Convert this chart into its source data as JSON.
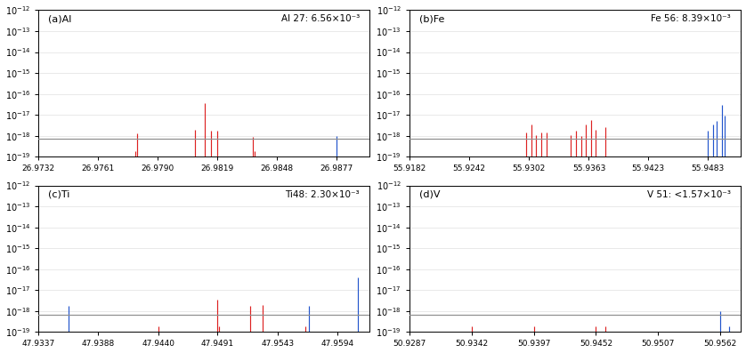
{
  "panels": [
    {
      "label": "(a)Al",
      "annotation": "Al 27: 6.56×10⁻³",
      "xmin": 26.9732,
      "xmax": 26.9893,
      "xticks": [
        26.9732,
        26.9761,
        26.979,
        26.9819,
        26.9848,
        26.9877
      ],
      "xtick_labels": [
        "26.9732",
        "26.9761",
        "26.9790",
        "26.9819",
        "26.9848",
        "26.9877"
      ],
      "red_lines": [
        [
          26.978,
          1.3e-18
        ],
        [
          26.9779,
          1.9e-19
        ],
        [
          26.9808,
          1.9e-18
        ],
        [
          26.9813,
          3.5e-17
        ],
        [
          26.9816,
          1.8e-18
        ],
        [
          26.9819,
          1.8e-18
        ],
        [
          26.9836,
          9e-19
        ],
        [
          26.9837,
          1.9e-19
        ]
      ],
      "blue_lines": [
        [
          26.9877,
          9.5e-19
        ]
      ],
      "hline": 7e-19
    },
    {
      "label": "(b)Fe",
      "annotation": "Fe 56: 8.39×10⁻³",
      "xmin": 55.9182,
      "xmax": 55.9516,
      "xticks": [
        55.9182,
        55.9242,
        55.9302,
        55.9363,
        55.9423,
        55.9483
      ],
      "xtick_labels": [
        "55.9182",
        "55.9242",
        "55.9302",
        "55.9363",
        "55.9423",
        "55.9483"
      ],
      "red_lines": [
        [
          55.9244,
          1e-19
        ],
        [
          55.93,
          1.5e-18
        ],
        [
          55.9305,
          3.5e-18
        ],
        [
          55.931,
          1.1e-18
        ],
        [
          55.9315,
          1.4e-18
        ],
        [
          55.932,
          1.5e-18
        ],
        [
          55.934,
          1e-19
        ],
        [
          55.9345,
          1.1e-18
        ],
        [
          55.935,
          1.8e-18
        ],
        [
          55.9355,
          1e-18
        ],
        [
          55.936,
          3.5e-18
        ],
        [
          55.9365,
          5.5e-18
        ],
        [
          55.937,
          2e-18
        ],
        [
          55.938,
          2.5e-18
        ],
        [
          55.9423,
          1e-19
        ]
      ],
      "blue_lines": [
        [
          55.9483,
          1.8e-18
        ],
        [
          55.9488,
          3.5e-18
        ],
        [
          55.9492,
          5e-18
        ],
        [
          55.9497,
          3e-17
        ],
        [
          55.95,
          9e-18
        ]
      ],
      "hline": 7e-19
    },
    {
      "label": "(c)Ti",
      "annotation": "Ti48: 2.30×10⁻³",
      "xmin": 47.9337,
      "xmax": 47.9622,
      "xticks": [
        47.9337,
        47.9388,
        47.944,
        47.9491,
        47.9543,
        47.9594
      ],
      "xtick_labels": [
        "47.9337",
        "47.9388",
        "47.9440",
        "47.9491",
        "47.9543",
        "47.9594"
      ],
      "red_lines": [
        [
          47.944,
          1.9e-19
        ],
        [
          47.9491,
          3.5e-18
        ],
        [
          47.9492,
          1.9e-19
        ],
        [
          47.9519,
          1.8e-18
        ],
        [
          47.953,
          1.9e-18
        ],
        [
          47.9567,
          1.9e-19
        ]
      ],
      "blue_lines": [
        [
          47.9363,
          1.8e-18
        ],
        [
          47.957,
          1.8e-18
        ],
        [
          47.9612,
          4e-17
        ]
      ],
      "hline": 7e-19
    },
    {
      "label": "(d)V",
      "annotation": "V 51: <1.57×10⁻³",
      "xmin": 50.9287,
      "xmax": 50.958,
      "xticks": [
        50.9287,
        50.9342,
        50.9397,
        50.9452,
        50.9507,
        50.9562
      ],
      "xtick_labels": [
        "50.9287",
        "50.9342",
        "50.9397",
        "50.9452",
        "50.9507",
        "50.9562"
      ],
      "red_lines": [
        [
          50.9342,
          1.9e-19
        ],
        [
          50.9397,
          1.9e-19
        ],
        [
          50.9452,
          1.9e-19
        ],
        [
          50.946,
          1.9e-19
        ]
      ],
      "blue_lines": [
        [
          50.9562,
          9.5e-19
        ],
        [
          50.957,
          1.9e-19
        ]
      ],
      "hline": 7e-19
    }
  ],
  "ymin": 1e-19,
  "ymax": 1e-12,
  "yticks": [
    1e-19,
    1e-18,
    1e-17,
    1e-16,
    1e-15,
    1e-14,
    1e-13,
    1e-12
  ],
  "hline_color": "#909090",
  "red_color": "#dd2222",
  "blue_color": "#2255cc",
  "bg_color": "#ffffff",
  "fig_bg": "#ffffff",
  "grid_color": "#e0e0e0",
  "label_fontsize": 8,
  "annot_fontsize": 7.5,
  "ytick_fontsize": 7,
  "xtick_fontsize": 6.5
}
